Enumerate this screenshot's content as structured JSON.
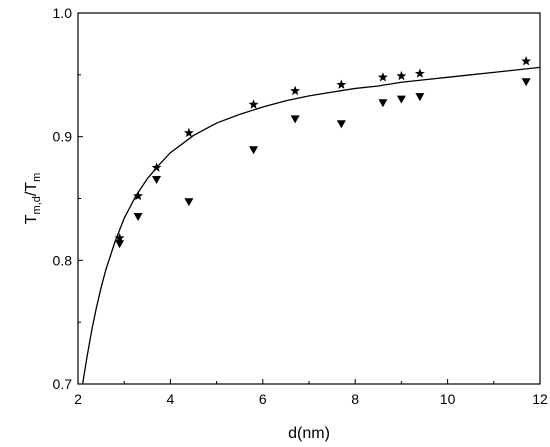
{
  "chart_data": {
    "type": "scatter",
    "title": "",
    "xlabel": "d(nm)",
    "ylabel": {
      "main": "T",
      "sub1": "m,d",
      "sep": "/T",
      "sub2": "m"
    },
    "xlim": [
      2,
      12
    ],
    "ylim": [
      0.7,
      1.0
    ],
    "x_ticks": [
      2,
      4,
      6,
      8,
      10,
      12
    ],
    "x_tick_labels": [
      "2",
      "4",
      "6",
      "8",
      "10",
      "12"
    ],
    "y_ticks": [
      0.7,
      0.8,
      0.9,
      1.0
    ],
    "y_tick_labels": [
      "0.7",
      "0.8",
      "0.9",
      "1.0"
    ],
    "grid": false,
    "legend": "none",
    "series": [
      {
        "marker": "star",
        "x": [
          2.9,
          3.3,
          3.7,
          4.4,
          5.8,
          6.7,
          7.7,
          8.6,
          9.0,
          9.4,
          11.7
        ],
        "y": [
          0.818,
          0.852,
          0.875,
          0.903,
          0.926,
          0.937,
          0.942,
          0.948,
          0.949,
          0.951,
          0.961
        ]
      },
      {
        "marker": "triangle-down",
        "x": [
          2.9,
          3.3,
          3.7,
          4.4,
          5.8,
          6.7,
          7.7,
          8.6,
          9.0,
          9.4,
          11.7
        ],
        "y": [
          0.813,
          0.835,
          0.865,
          0.847,
          0.889,
          0.914,
          0.91,
          0.927,
          0.93,
          0.932,
          0.944
        ]
      },
      {
        "type": "line",
        "x": [
          2.1,
          2.2,
          2.3,
          2.4,
          2.5,
          2.6,
          2.8,
          3.0,
          3.25,
          3.5,
          3.75,
          4.0,
          4.5,
          5.0,
          5.5,
          6.0,
          6.5,
          7.0,
          7.5,
          8.0,
          8.5,
          9.0,
          9.5,
          10.0,
          10.5,
          11.0,
          11.5,
          12.0
        ],
        "y": [
          0.7,
          0.723,
          0.744,
          0.762,
          0.778,
          0.792,
          0.815,
          0.834,
          0.852,
          0.866,
          0.877,
          0.887,
          0.901,
          0.911,
          0.918,
          0.924,
          0.929,
          0.933,
          0.936,
          0.939,
          0.941,
          0.944,
          0.946,
          0.948,
          0.95,
          0.952,
          0.954,
          0.956
        ]
      }
    ]
  }
}
